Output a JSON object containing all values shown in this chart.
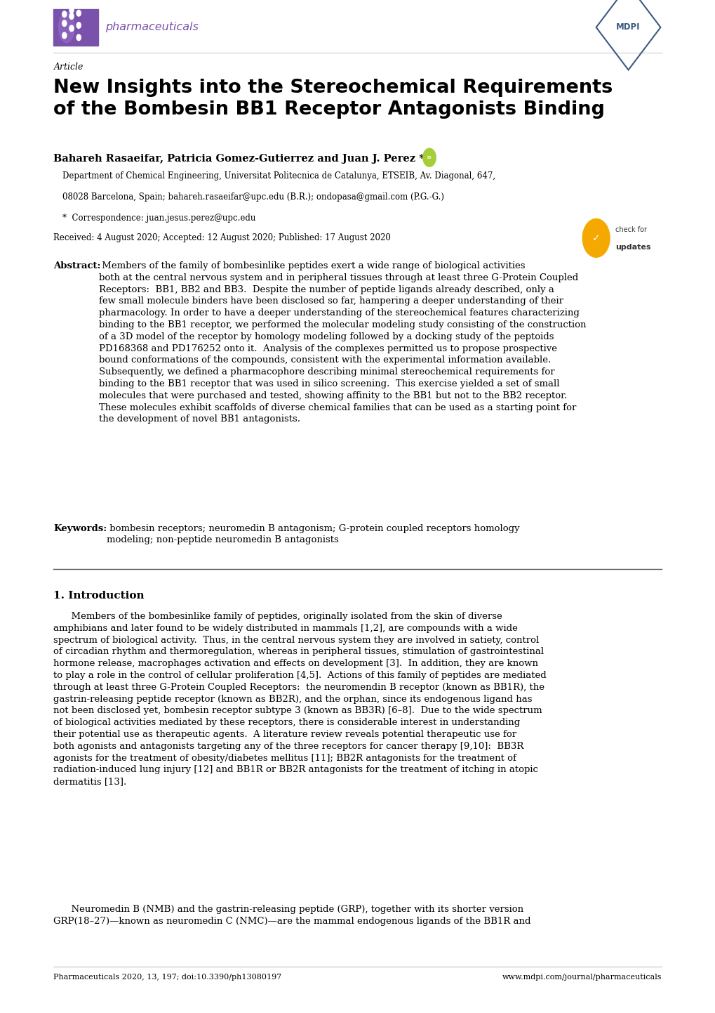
{
  "background_color": "#ffffff",
  "page_width": 10.2,
  "page_height": 14.42,
  "journal_name": "pharmaceuticals",
  "article_label": "Article",
  "title": "New Insights into the Stereochemical Requirements\nof the Bombesin BB1 Receptor Antagonists Binding",
  "authors": "Bahareh Rasaeifar, Patricia Gomez-Gutierrez and Juan J. Perez *",
  "affiliation_line1": "Department of Chemical Engineering, Universitat Politecnica de Catalunya, ETSEIB, Av. Diagonal, 647,",
  "affiliation_line2": "08028 Barcelona, Spain; bahareh.rasaeifar@upc.edu (B.R.); ondopasa@gmail.com (P.G.-G.)",
  "correspondence": "*  Correspondence: juan.jesus.perez@upc.edu",
  "received": "Received: 4 August 2020; Accepted: 12 August 2020; Published: 17 August 2020",
  "abstract_label": "Abstract:",
  "abstract_text": " Members of the family of bombesinlike peptides exert a wide range of biological activities both at the central nervous system and in peripheral tissues through at least three G-Protein Coupled Receptors:  BB1, BB2 and BB3.  Despite the number of peptide ligands already described, only a few small molecule binders have been disclosed so far, hampering a deeper understanding of their pharmacology. In order to have a deeper understanding of the stereochemical features characterizing binding to the BB1 receptor, we performed the molecular modeling study consisting of the construction of a 3D model of the receptor by homology modeling followed by a docking study of the peptoids PD168368 and PD176252 onto it.  Analysis of the complexes permitted us to propose prospective bound conformations of the compounds, consistent with the experimental information available. Subsequently, we defined a pharmacophore describing minimal stereochemical requirements for binding to the BB1 receptor that was used in silico screening.  This exercise yielded a set of small molecules that were purchased and tested, showing affinity to the BB1 but not to the BB2 receptor. These molecules exhibit scaffolds of diverse chemical families that can be used as a starting point for the development of novel BB1 antagonists.",
  "keywords_label": "Keywords:",
  "keywords_text": " bombesin receptors; neuromedin B antagonism; G-protein coupled receptors homology modeling; non-peptide neuromedin B antagonists",
  "section1_title": "1. Introduction",
  "intro_p1": "      Members of the bombesinlike family of peptides, originally isolated from the skin of diverse amphibians and later found to be widely distributed in mammals [1,2], are compounds with a wide spectrum of biological activity.  Thus, in the central nervous system they are involved in satiety, control of circadian rhythm and thermoregulation, whereas in peripheral tissues, stimulation of gastrointestinal hormone release, macrophages activation and effects on development [3].  In addition, they are known to play a role in the control of cellular proliferation [4,5].  Actions of this family of peptides are mediated through at least three G-Protein Coupled Receptors:  the neuromendin B receptor (known as BB1R), the gastrin-releasing peptide receptor (known as BB2R), and the orphan, since its endogenous ligand has not been disclosed yet, bombesin receptor subtype 3 (known as BB3R) [6–8].  Due to the wide spectrum of biological activities mediated by these receptors, there is considerable interest in understanding their potential use as therapeutic agents.  A literature review reveals potential therapeutic use for both agonists and antagonists targeting any of the three receptors for cancer therapy [9,10]:  BB3R agonists for the treatment of obesity/diabetes mellitus [11]; BB2R antagonists for the treatment of radiation-induced lung injury [12] and BB1R or BB2R antagonists for the treatment of itching in atopic dermatitis [13].",
  "intro_p2": "      Neuromedin B (NMB) and the gastrin-releasing peptide (GRP), together with its shorter version GRP(18–27)—known as neuromedin C (NMC)—are the mammal endogenous ligands of the BB1R and",
  "footer_left": "Pharmaceuticals 2020, 13, 197; doi:10.3390/ph13080197",
  "footer_right": "www.mdpi.com/journal/pharmaceuticals",
  "journal_color": "#7B52AB",
  "mdpi_color": "#3D5A80",
  "check_color": "#F5A800",
  "orcid_color": "#A6CE39"
}
